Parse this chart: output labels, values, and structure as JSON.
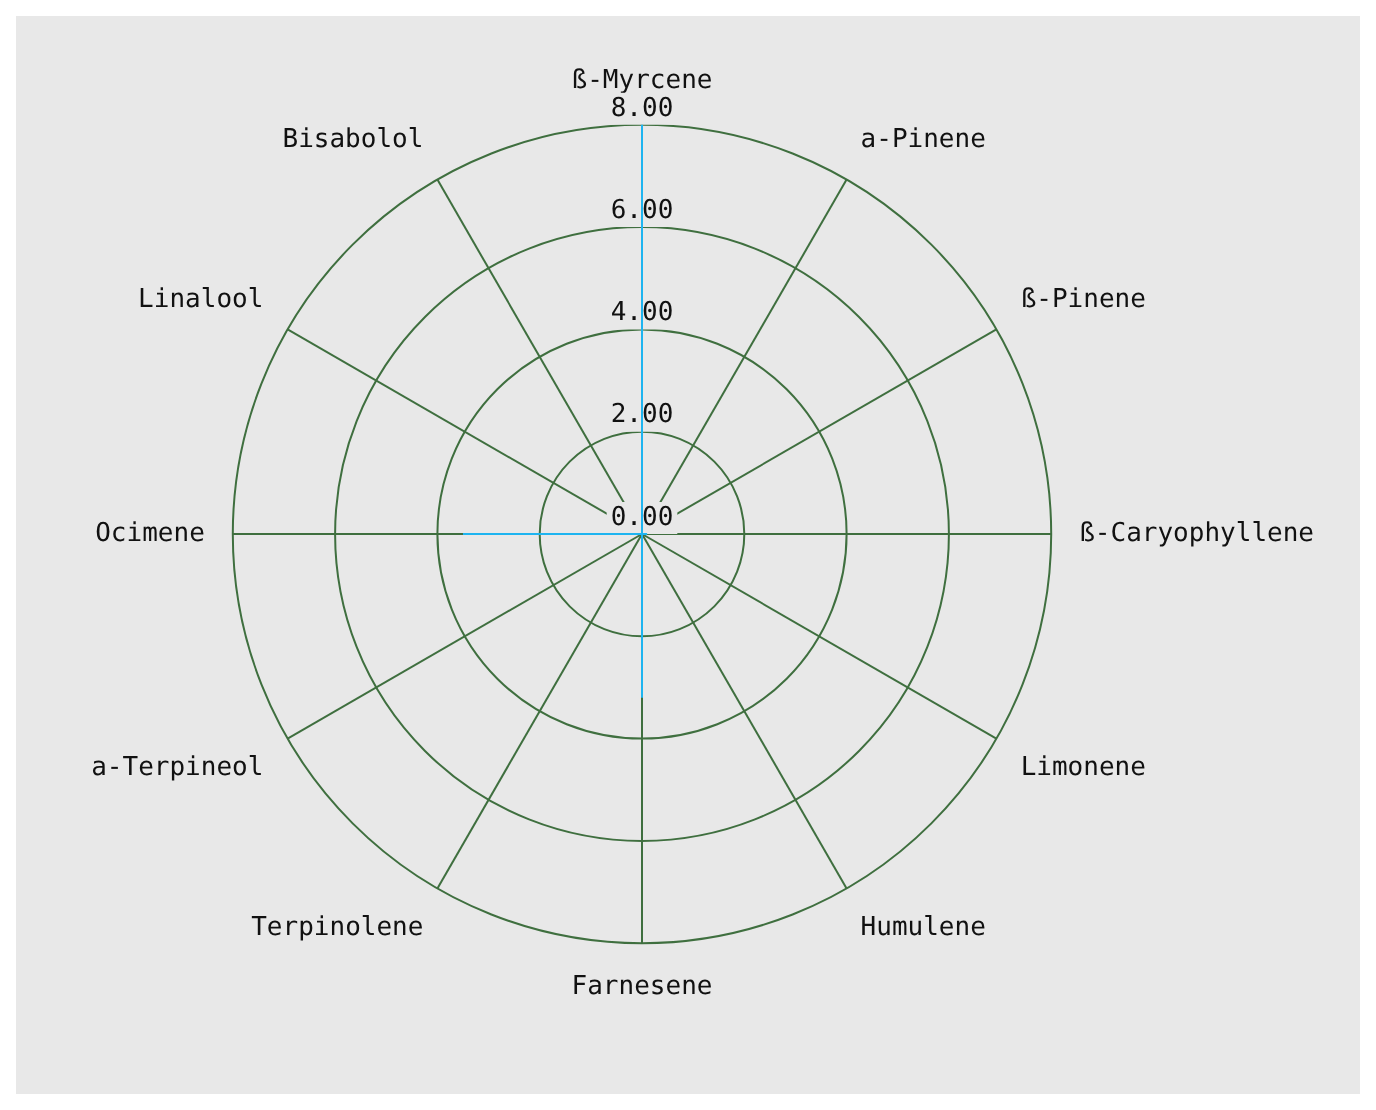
{
  "chart_data": {
    "type": "radar",
    "categories": [
      "ß-Myrcene",
      "a-Pinene",
      "ß-Pinene",
      "ß-Caryophyllene",
      "Limonene",
      "Humulene",
      "Farnesene",
      "Terpinolene",
      "a-Terpineol",
      "Ocimene",
      "Linalool",
      "Bisabolol"
    ],
    "series": [
      {
        "color": "#1eb4f0",
        "values": [
          8,
          0,
          0,
          0.1,
          0,
          0,
          3.2,
          0,
          0,
          3.5,
          0,
          0
        ]
      }
    ],
    "ylim": [
      0,
      8
    ],
    "yticks": [
      {
        "value": 0,
        "label": "0.00"
      },
      {
        "value": 2,
        "label": "2.00"
      },
      {
        "value": 4,
        "label": "4.00"
      },
      {
        "value": 6,
        "label": "6.00"
      },
      {
        "value": 8,
        "label": "8.00"
      }
    ],
    "grid": true,
    "legend": false
  }
}
